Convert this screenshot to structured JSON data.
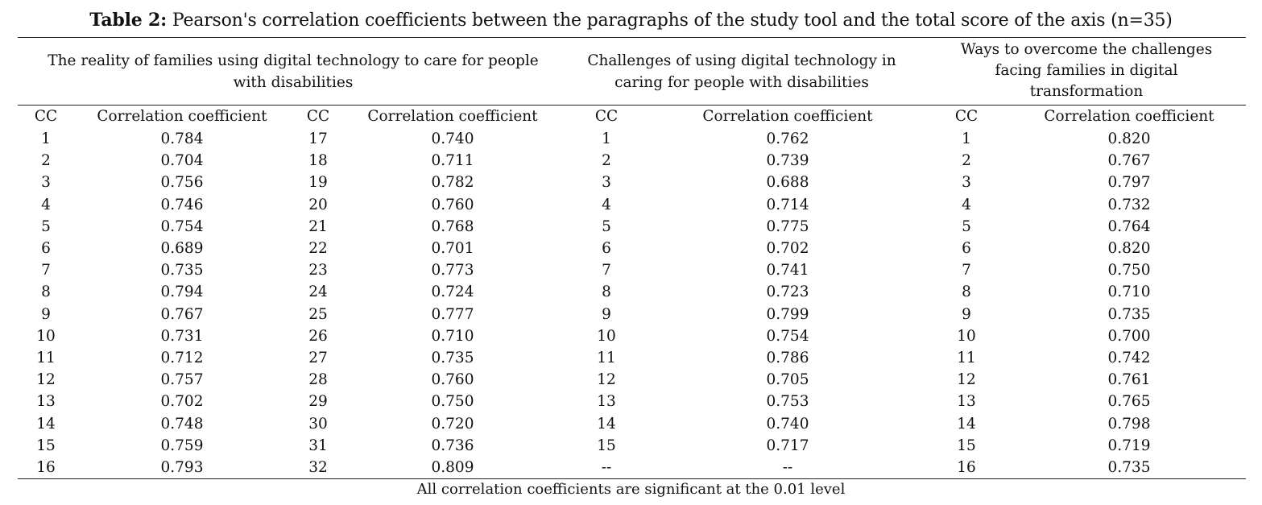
{
  "caption": {
    "label": "Table 2:",
    "text": "Pearson's correlation coefficients between the paragraphs of the study tool and the total score of the axis (n=35)"
  },
  "groups": [
    "The reality of families using digital technology to care for people with disabilities",
    "Challenges of using digital technology in caring for people with disabilities",
    "Ways to overcome the challenges facing families in digital transformation"
  ],
  "columns": [
    "CC",
    "Correlation coefficient",
    "CC",
    "Correlation coefficient",
    "CC",
    "Correlation coefficient",
    "CC",
    "Correlation coefficient"
  ],
  "rows": [
    [
      "1",
      "0.784",
      "17",
      "0.740",
      "1",
      "0.762",
      "1",
      "0.820"
    ],
    [
      "2",
      "0.704",
      "18",
      "0.711",
      "2",
      "0.739",
      "2",
      "0.767"
    ],
    [
      "3",
      "0.756",
      "19",
      "0.782",
      "3",
      "0.688",
      "3",
      "0.797"
    ],
    [
      "4",
      "0.746",
      "20",
      "0.760",
      "4",
      "0.714",
      "4",
      "0.732"
    ],
    [
      "5",
      "0.754",
      "21",
      "0.768",
      "5",
      "0.775",
      "5",
      "0.764"
    ],
    [
      "6",
      "0.689",
      "22",
      "0.701",
      "6",
      "0.702",
      "6",
      "0.820"
    ],
    [
      "7",
      "0.735",
      "23",
      "0.773",
      "7",
      "0.741",
      "7",
      "0.750"
    ],
    [
      "8",
      "0.794",
      "24",
      "0.724",
      "8",
      "0.723",
      "8",
      "0.710"
    ],
    [
      "9",
      "0.767",
      "25",
      "0.777",
      "9",
      "0.799",
      "9",
      "0.735"
    ],
    [
      "10",
      "0.731",
      "26",
      "0.710",
      "10",
      "0.754",
      "10",
      "0.700"
    ],
    [
      "11",
      "0.712",
      "27",
      "0.735",
      "11",
      "0.786",
      "11",
      "0.742"
    ],
    [
      "12",
      "0.757",
      "28",
      "0.760",
      "12",
      "0.705",
      "12",
      "0.761"
    ],
    [
      "13",
      "0.702",
      "29",
      "0.750",
      "13",
      "0.753",
      "13",
      "0.765"
    ],
    [
      "14",
      "0.748",
      "30",
      "0.720",
      "14",
      "0.740",
      "14",
      "0.798"
    ],
    [
      "15",
      "0.759",
      "31",
      "0.736",
      "15",
      "0.717",
      "15",
      "0.719"
    ],
    [
      "16",
      "0.793",
      "32",
      "0.809",
      "--",
      "--",
      "16",
      "0.735"
    ]
  ],
  "footnote": "All correlation coefficients are significant at the 0.01 level"
}
